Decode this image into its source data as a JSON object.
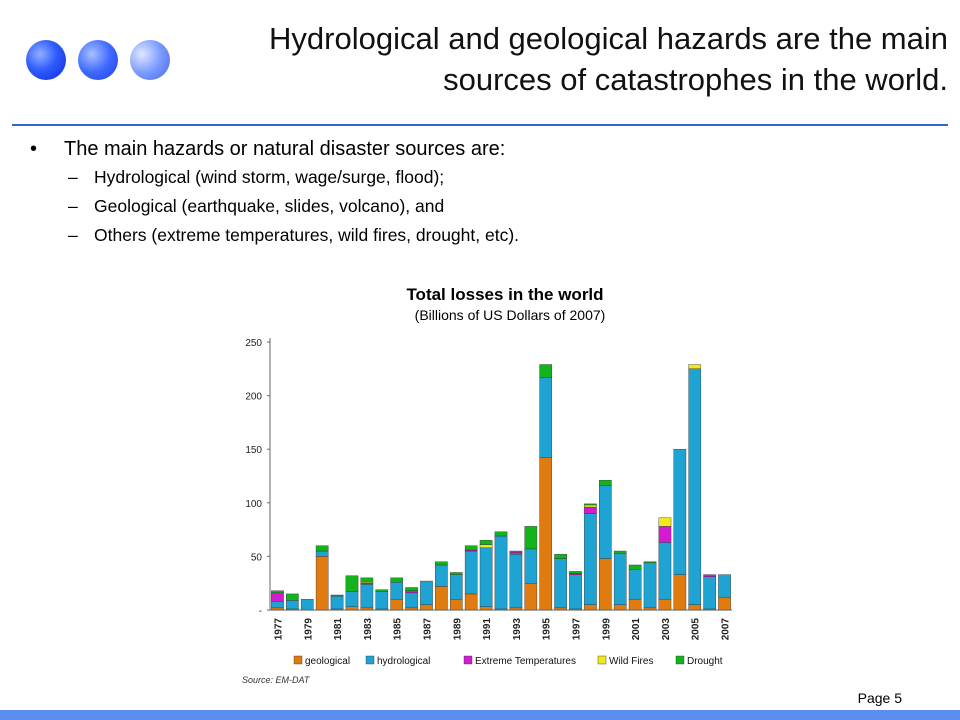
{
  "title": "Hydrological and geological hazards are the main sources of catastrophes in the world.",
  "bullet": "The main hazards or natural disaster sources are:",
  "subitems": [
    "Hydrological (wind storm, wage/surge, flood);",
    "Geological (earthquake, slides, volcano), and",
    "Others (extreme temperatures, wild fires, drought, etc)."
  ],
  "bullet_symbol": "•",
  "dash_symbol": "–",
  "page_label": "Page 5",
  "colors": {
    "title_rule": "#2f63d6",
    "bottom_bar": "#5b8ef0"
  },
  "chart_data": {
    "type": "bar",
    "stacked": true,
    "title": "Total losses in the world",
    "subtitle": "(Billions of US Dollars of 2007)",
    "source": "Source: EM-DAT",
    "ylim": [
      0,
      250
    ],
    "yticks": [
      0,
      50,
      100,
      150,
      200,
      250
    ],
    "ytick_labels": [
      "-",
      "50",
      "100",
      "150",
      "200",
      "250"
    ],
    "grid": false,
    "legend_position": "bottom",
    "categories": [
      "1977",
      "1978",
      "1979",
      "1980",
      "1981",
      "1982",
      "1983",
      "1984",
      "1985",
      "1986",
      "1987",
      "1988",
      "1989",
      "1990",
      "1991",
      "1992",
      "1993",
      "1994",
      "1995",
      "1996",
      "1997",
      "1998",
      "1999",
      "2000",
      "2001",
      "2002",
      "2003",
      "2004",
      "2005",
      "2006",
      "2007"
    ],
    "xtick_labels": [
      "1977",
      "1979",
      "1981",
      "1983",
      "1985",
      "1987",
      "1989",
      "1991",
      "1993",
      "1995",
      "1997",
      "1999",
      "2001",
      "2003",
      "2005",
      "2007"
    ],
    "series": [
      {
        "name": "geological",
        "color": "#e07b10",
        "values": [
          2,
          1,
          0,
          50,
          1,
          3,
          2,
          1,
          10,
          2,
          5,
          22,
          10,
          15,
          3,
          1,
          2,
          25,
          142,
          2,
          1,
          5,
          48,
          5,
          10,
          2,
          10,
          33,
          5,
          1,
          12
        ]
      },
      {
        "name": "hydrological",
        "color": "#1ea3d2",
        "values": [
          6,
          8,
          10,
          5,
          12,
          14,
          22,
          16,
          16,
          14,
          22,
          20,
          23,
          40,
          55,
          68,
          50,
          32,
          75,
          46,
          32,
          85,
          68,
          48,
          28,
          42,
          53,
          117,
          220,
          30,
          21
        ]
      },
      {
        "name": "Extreme Temperatures",
        "color": "#d41ad2",
        "values": [
          8,
          0,
          0,
          0,
          0,
          0,
          1,
          0,
          0,
          2,
          0,
          0,
          0,
          1,
          0,
          0,
          2,
          0,
          0,
          0,
          1,
          6,
          0,
          0,
          0,
          0,
          15,
          0,
          0,
          2,
          0
        ]
      },
      {
        "name": "Wild Fires",
        "color": "#f0e81e",
        "values": [
          0,
          0,
          0,
          0,
          0,
          0,
          1,
          0,
          0,
          0,
          0,
          0,
          0,
          0,
          3,
          0,
          0,
          0,
          0,
          0,
          0,
          2,
          0,
          0,
          0,
          0,
          8,
          0,
          4,
          0,
          0
        ]
      },
      {
        "name": "Drought",
        "color": "#13b31c",
        "values": [
          2,
          6,
          0,
          5,
          1,
          15,
          4,
          2,
          4,
          3,
          0,
          3,
          2,
          4,
          4,
          4,
          1,
          21,
          12,
          4,
          2,
          1,
          5,
          2,
          4,
          1,
          0,
          0,
          0,
          0,
          0
        ]
      }
    ]
  }
}
